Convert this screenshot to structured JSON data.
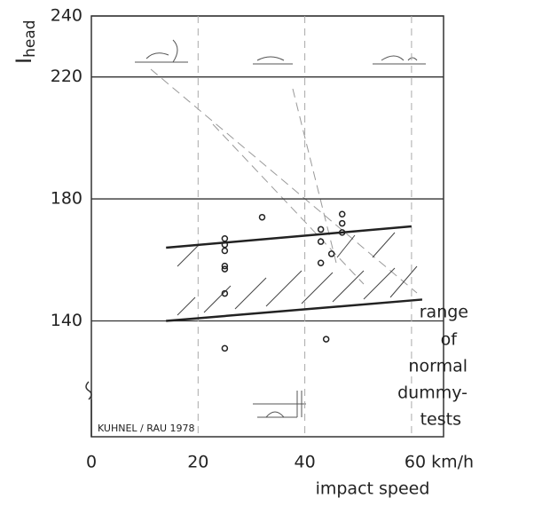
{
  "chart_data": {
    "type": "scatter",
    "ylabel": {
      "text": "I",
      "subscript": "head"
    },
    "xlabel": "impact  speed",
    "credit": "KUHNEL / RAU 1978",
    "annotation_lines": [
      "range",
      "of",
      "normal",
      "dummy-",
      "tests"
    ],
    "xlim": [
      0,
      66
    ],
    "ylim": [
      102,
      240
    ],
    "xticks": [
      0,
      20,
      40,
      {
        "value": 60,
        "label": "60 km/h"
      }
    ],
    "yticks": [
      140,
      180,
      220,
      240
    ],
    "grid": true,
    "color": "#222222",
    "x": [
      25,
      25,
      25,
      25,
      25,
      25,
      25,
      32,
      43,
      43,
      43,
      44,
      45,
      47,
      47,
      47
    ],
    "values": [
      167,
      165,
      163,
      158,
      157,
      149,
      131,
      174,
      170,
      166,
      159,
      134,
      162,
      175,
      172,
      169
    ],
    "range_lines": [
      {
        "x": [
          14,
          60
        ],
        "values": [
          164,
          171
        ]
      },
      {
        "x": [
          14,
          62
        ],
        "values": [
          140,
          147
        ]
      }
    ]
  }
}
